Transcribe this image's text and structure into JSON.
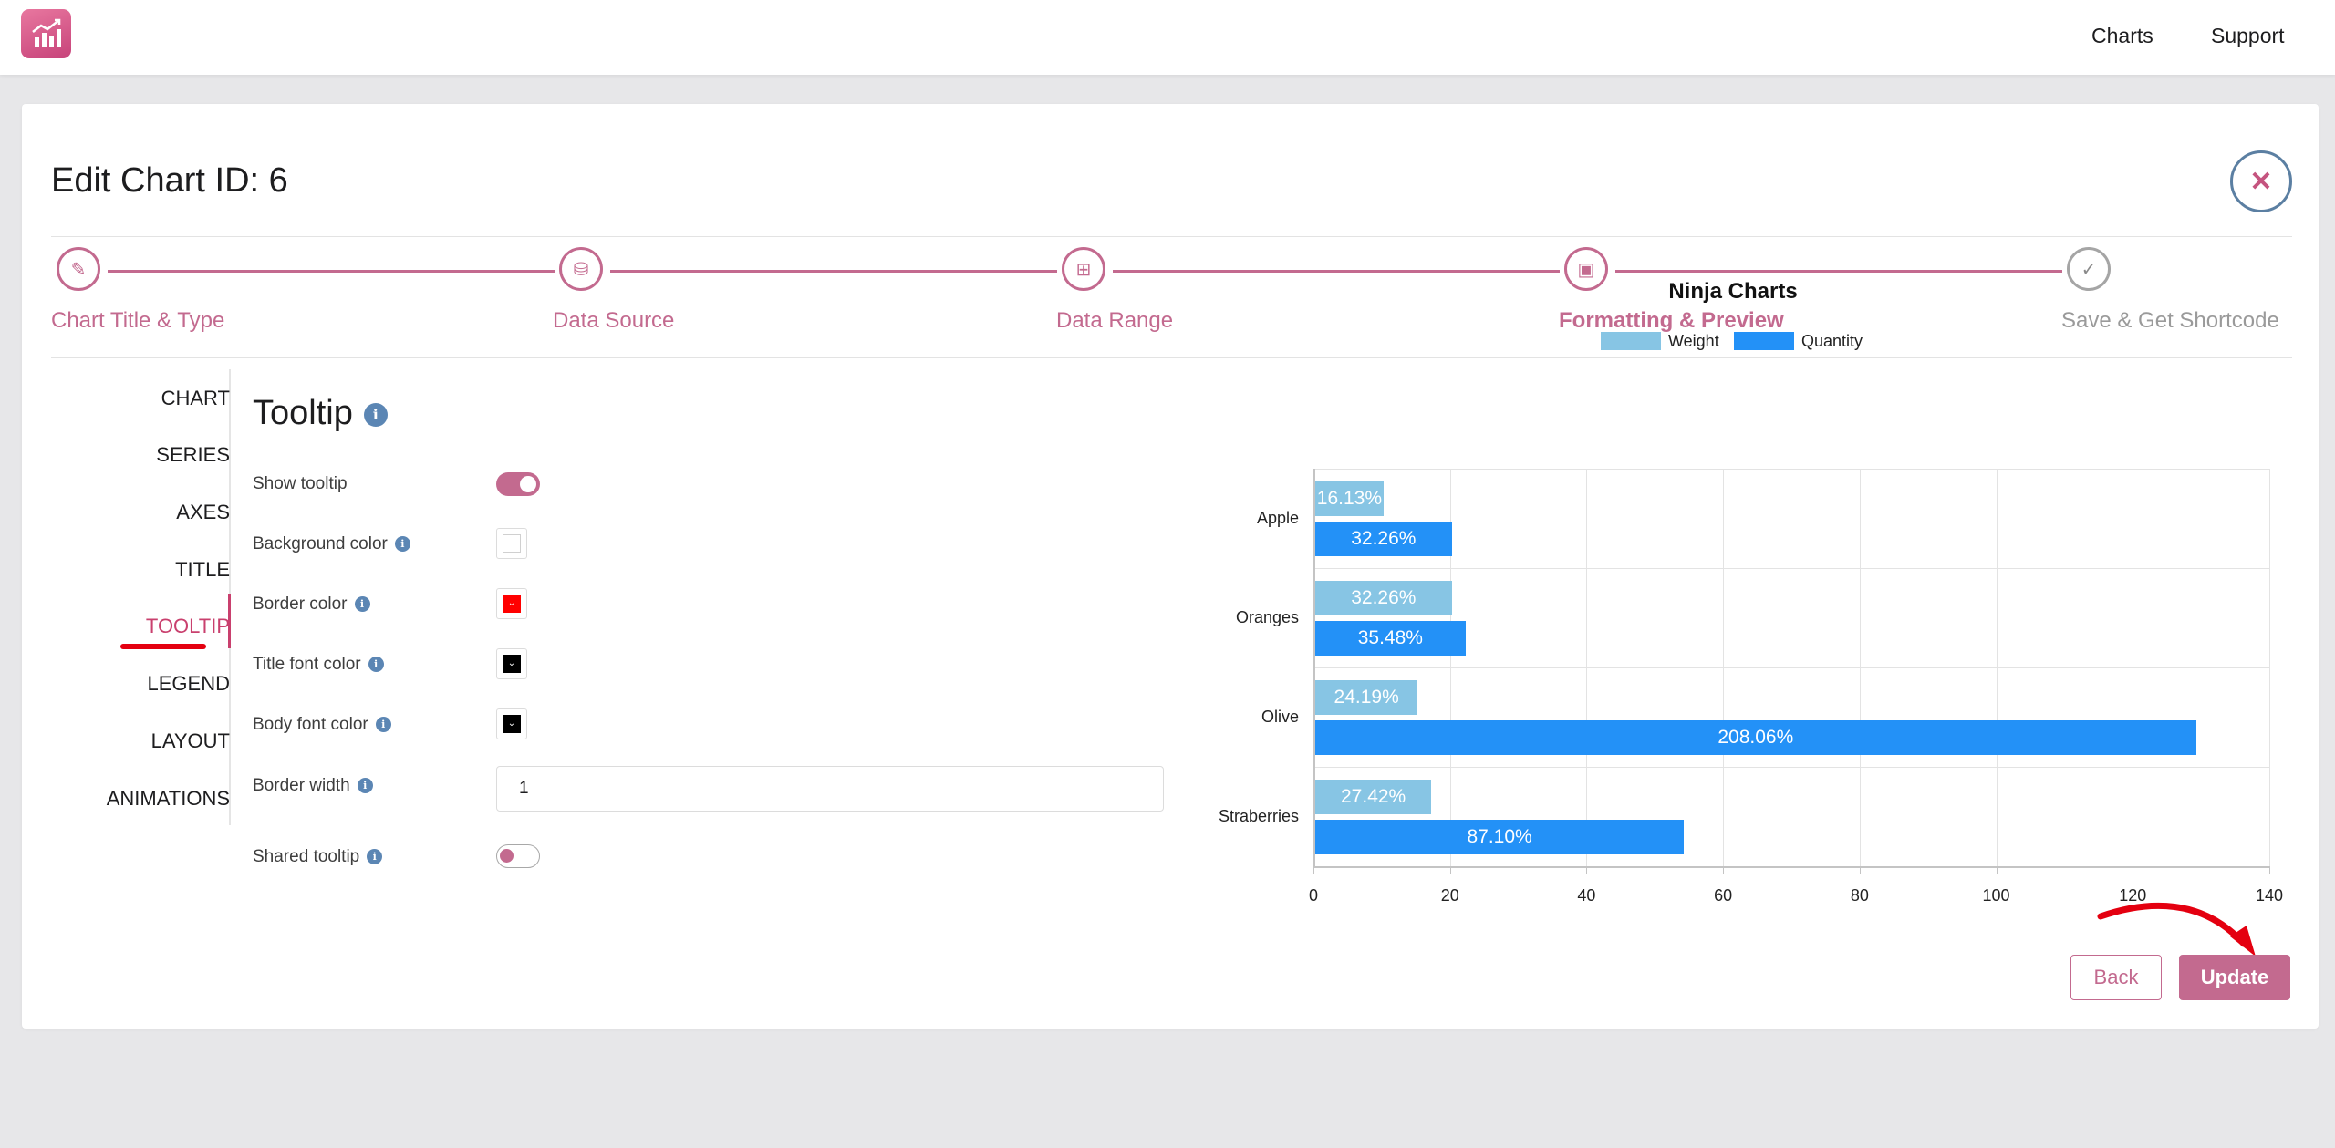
{
  "topnav": {
    "charts": "Charts",
    "support": "Support"
  },
  "page": {
    "title": "Edit Chart ID: 6",
    "close_glyph": "✕"
  },
  "stepper": [
    {
      "label": "Chart Title & Type",
      "icon": "pencil-icon",
      "glyph": "✎",
      "state": "complete"
    },
    {
      "label": "Data Source",
      "icon": "database-icon",
      "glyph": "⛁",
      "state": "complete"
    },
    {
      "label": "Data Range",
      "icon": "range-icon",
      "glyph": "⊞",
      "state": "complete"
    },
    {
      "label": "Formatting & Preview",
      "icon": "preview-icon",
      "glyph": "▣",
      "state": "active"
    },
    {
      "label": "Save & Get Shortcode",
      "icon": "check-icon",
      "glyph": "✓",
      "state": "pending"
    }
  ],
  "sidenav": {
    "items": [
      "CHART",
      "SERIES",
      "AXES",
      "TITLE",
      "TOOLTIP",
      "LEGEND",
      "LAYOUT",
      "ANIMATIONS"
    ],
    "active": "TOOLTIP"
  },
  "tooltip_panel": {
    "title": "Tooltip",
    "info_glyph": "i",
    "show_tooltip": {
      "label": "Show tooltip",
      "on": true
    },
    "background_color": {
      "label": "Background color",
      "value": "#ffffff"
    },
    "border_color": {
      "label": "Border color",
      "value": "#ff0000"
    },
    "title_font_color": {
      "label": "Title font color",
      "value": "#000000"
    },
    "body_font_color": {
      "label": "Body font color",
      "value": "#000000"
    },
    "border_width": {
      "label": "Border width",
      "value": "1"
    },
    "shared_tooltip": {
      "label": "Shared tooltip",
      "on": false
    }
  },
  "chart_data": {
    "type": "bar",
    "orientation": "horizontal",
    "title": "Ninja Charts",
    "categories": [
      "Apple",
      "Oranges",
      "Olive",
      "Straberries"
    ],
    "series": [
      {
        "name": "Weight",
        "color": "#87c5e4",
        "values": [
          10,
          20,
          15,
          17
        ],
        "labels": [
          "16.13%",
          "32.26%",
          "24.19%",
          "27.42%"
        ]
      },
      {
        "name": "Quantity",
        "color": "#2391f7",
        "values": [
          20,
          22,
          129,
          54
        ],
        "labels": [
          "32.26%",
          "35.48%",
          "208.06%",
          "87.10%"
        ]
      }
    ],
    "xlim": [
      0,
      140
    ],
    "x_ticks": [
      "0",
      "20",
      "40",
      "60",
      "80",
      "100",
      "120",
      "140"
    ],
    "grid": true,
    "legend": "top"
  },
  "actions": {
    "back": "Back",
    "update": "Update"
  }
}
